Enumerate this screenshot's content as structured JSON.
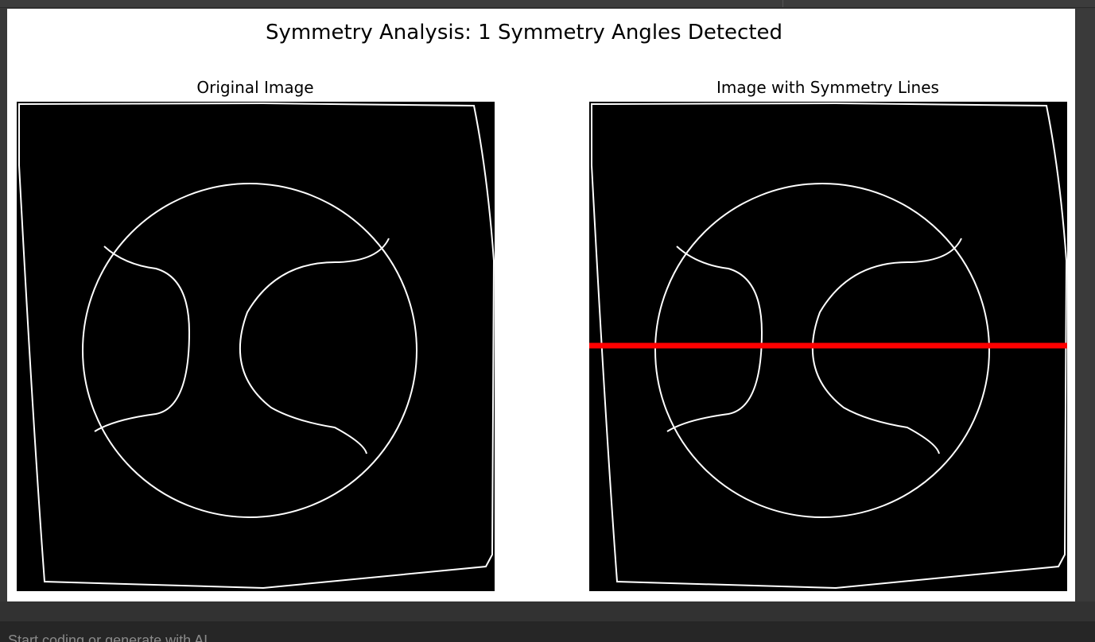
{
  "figure": {
    "title": "Symmetry Analysis: 1 Symmetry Angles Detected",
    "left_panel_title": "Original Image",
    "right_panel_title": "Image with Symmetry Lines",
    "symmetry_line_color": "#ff0000",
    "edge_color": "#ffffff",
    "background_color": "#000000"
  },
  "prompt": {
    "placeholder": "Start coding or generate with AI"
  }
}
